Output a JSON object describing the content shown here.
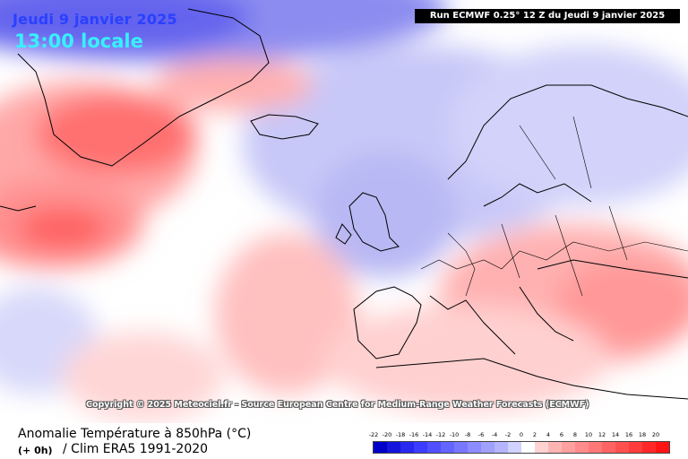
{
  "title": {
    "date": "Jeudi 9 janvier 2025",
    "time": "13:00 locale"
  },
  "run": "Run ECMWF 0.25° 12 Z du Jeudi 9 janvier 2025",
  "copyright": "Copyright © 2025 Meteociel.fr - Source European Centre for Medium-Range Weather Forecasts (ECMWF)",
  "legend": {
    "title": "Anomalie Température à 850hPa (°C)",
    "offset": "(+ 0h)",
    "clim": "/ Clim ERA5 1991-2020",
    "ticks": [
      "-22",
      "-20",
      "-18",
      "-16",
      "-14",
      "-12",
      "-10",
      "-8",
      "-6",
      "-4",
      "-2",
      "0",
      "2",
      "4",
      "6",
      "8",
      "10",
      "12",
      "14",
      "16",
      "18",
      "20"
    ],
    "colors": [
      "#0000c8",
      "#1414dc",
      "#2828f0",
      "#3c3cff",
      "#5050ff",
      "#6464ff",
      "#7878ff",
      "#8c8cff",
      "#a0a0ff",
      "#b4b4ff",
      "#d2d2ff",
      "#ffffff",
      "#ffd2d2",
      "#ffb4b4",
      "#ffa0a0",
      "#ff8c8c",
      "#ff7878",
      "#ff6464",
      "#ff5050",
      "#ff3c3c",
      "#ff2828",
      "#ff1414"
    ]
  }
}
